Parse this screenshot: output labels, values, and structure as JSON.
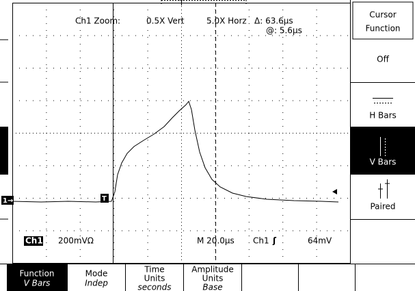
{
  "display": {
    "zoom_label": "Ch1 Zoom:",
    "vert": "0.5X Vert",
    "horz": "5.0X Horz",
    "delta": "Δ: 63.6µs",
    "at": "@: 5.6µs",
    "channel": "Ch1",
    "scale": "200mVΩ",
    "timebase": "M 20.0µs",
    "trigger_source": "Ch1",
    "trigger_slope": "ʃ",
    "trigger_level": "64mV",
    "ground_marker": "1→",
    "trigger_marker": "T"
  },
  "side_menu": {
    "title": [
      "Cursor",
      "Function"
    ],
    "items": [
      "Off",
      "H Bars",
      "V Bars",
      "Paired"
    ]
  },
  "bottom_menu": [
    {
      "label": [
        "Function"
      ],
      "value": "V Bars"
    },
    {
      "label": [
        "Mode"
      ],
      "value": "Indep"
    },
    {
      "label": [
        "Time",
        "Units"
      ],
      "value": "seconds"
    },
    {
      "label": [
        "Amplitude",
        "Units"
      ],
      "value": "Base"
    }
  ]
}
